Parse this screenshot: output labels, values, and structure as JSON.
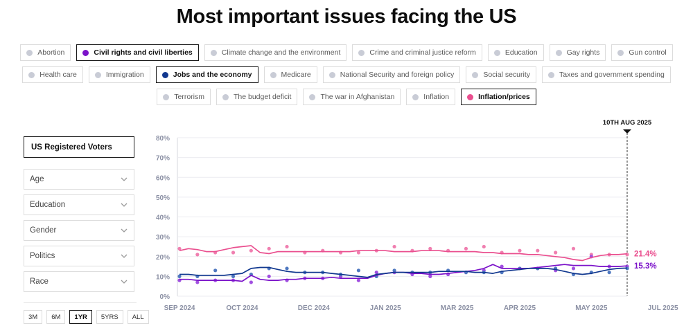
{
  "title": "Most important issues facing the US",
  "issue_rows": [
    [
      {
        "label": "Abortion",
        "active": false,
        "color": ""
      },
      {
        "label": "Civil rights and civil liberties",
        "active": true,
        "color": "#7b12c9"
      },
      {
        "label": "Climate change and the environment",
        "active": false,
        "color": ""
      },
      {
        "label": "Crime and criminal justice reform",
        "active": false,
        "color": ""
      },
      {
        "label": "Education",
        "active": false,
        "color": ""
      },
      {
        "label": "Gay rights",
        "active": false,
        "color": ""
      },
      {
        "label": "Gun control",
        "active": false,
        "color": ""
      }
    ],
    [
      {
        "label": "Health care",
        "active": false,
        "color": ""
      },
      {
        "label": "Immigration",
        "active": false,
        "color": ""
      },
      {
        "label": "Jobs and the economy",
        "active": true,
        "color": "#11388f"
      },
      {
        "label": "Medicare",
        "active": false,
        "color": ""
      },
      {
        "label": "National Security and foreign policy",
        "active": false,
        "color": ""
      },
      {
        "label": "Social security",
        "active": false,
        "color": ""
      },
      {
        "label": "Taxes and government spending",
        "active": false,
        "color": ""
      }
    ],
    [
      {
        "label": "Terrorism",
        "active": false,
        "color": ""
      },
      {
        "label": "The budget deficit",
        "active": false,
        "color": ""
      },
      {
        "label": "The war in Afghanistan",
        "active": false,
        "color": ""
      },
      {
        "label": "Inflation",
        "active": false,
        "color": ""
      },
      {
        "label": "Inflation/prices",
        "active": true,
        "color": "#ea4f8f"
      }
    ]
  ],
  "sidebar": {
    "population": "US Registered Voters",
    "filters": [
      "Age",
      "Education",
      "Gender",
      "Politics",
      "Race"
    ]
  },
  "time_ranges": [
    {
      "label": "3M",
      "active": false
    },
    {
      "label": "6M",
      "active": false
    },
    {
      "label": "1YR",
      "active": true
    },
    {
      "label": "5YRS",
      "active": false
    },
    {
      "label": "ALL",
      "active": false
    }
  ],
  "colors": {
    "inflation": "#ea4f8f",
    "inflation_dots": "#f07fb0",
    "civil": "#7b12c9",
    "civil_dots": "#a14fe0",
    "jobs": "#11388f",
    "jobs_dots": "#4f78c0",
    "grid": "#ebebf0",
    "marker": "#111111"
  },
  "chart_data": {
    "type": "line",
    "title": "Most important issues facing the US",
    "ylim": [
      0,
      80
    ],
    "yticks": [
      0,
      10,
      20,
      30,
      40,
      50,
      60,
      70,
      80
    ],
    "ytick_labels": [
      "0%",
      "10%",
      "20%",
      "30%",
      "40%",
      "50%",
      "60%",
      "70%",
      "80%"
    ],
    "x_range": [
      0,
      50
    ],
    "xtick_positions": [
      0,
      7,
      15,
      23,
      31,
      38,
      46,
      54
    ],
    "xtick_labels": [
      "SEP 2024",
      "OCT 2024",
      "DEC 2024",
      "JAN 2025",
      "MAR 2025",
      "APR 2025",
      "MAY 2025",
      "JUL 2025"
    ],
    "current_marker": {
      "label": "10TH AUG 2025",
      "x": 50
    },
    "series": [
      {
        "name": "Inflation/prices",
        "color_key": "inflation",
        "end_label": "21.4%",
        "line": [
          23.0,
          24.0,
          23.5,
          22.5,
          22.5,
          23.5,
          24.5,
          25.0,
          25.5,
          22.0,
          21.5,
          22.5,
          22.5,
          22.5,
          22.5,
          22.5,
          22.5,
          22.5,
          22.5,
          22.5,
          23.0,
          23.0,
          23.0,
          23.0,
          22.5,
          22.5,
          22.5,
          23.0,
          23.0,
          23.0,
          22.5,
          22.5,
          22.5,
          22.5,
          22.0,
          22.0,
          21.5,
          21.5,
          21.5,
          21.0,
          21.0,
          20.5,
          20.0,
          19.5,
          18.5,
          18.0,
          19.5,
          20.5,
          21.0,
          21.0,
          21.4
        ],
        "points": [
          [
            0,
            24
          ],
          [
            2,
            21
          ],
          [
            4,
            22
          ],
          [
            6,
            22
          ],
          [
            8,
            23
          ],
          [
            10,
            24
          ],
          [
            12,
            25
          ],
          [
            14,
            22
          ],
          [
            16,
            23
          ],
          [
            18,
            22
          ],
          [
            20,
            22
          ],
          [
            22,
            23
          ],
          [
            24,
            25
          ],
          [
            26,
            23
          ],
          [
            28,
            24
          ],
          [
            30,
            23
          ],
          [
            32,
            24
          ],
          [
            34,
            25
          ],
          [
            36,
            22
          ],
          [
            38,
            23
          ],
          [
            40,
            23
          ],
          [
            42,
            22
          ],
          [
            44,
            24
          ],
          [
            46,
            21
          ],
          [
            48,
            21
          ],
          [
            50,
            21
          ]
        ]
      },
      {
        "name": "Civil rights and civil liberties",
        "color_key": "civil",
        "end_label": "15.3%",
        "line": [
          8.5,
          8.5,
          8.0,
          8.0,
          8.0,
          8.0,
          8.0,
          7.5,
          10.5,
          8.5,
          8.0,
          8.0,
          8.5,
          8.5,
          9.0,
          9.0,
          9.0,
          9.5,
          9.0,
          9.0,
          9.0,
          9.0,
          10.5,
          11.5,
          12.0,
          12.0,
          11.5,
          11.5,
          11.0,
          11.0,
          11.5,
          12.0,
          12.5,
          13.0,
          14.0,
          16.0,
          14.0,
          14.0,
          14.0,
          14.0,
          14.5,
          15.0,
          15.5,
          16.0,
          15.5,
          15.5,
          15.5,
          15.0,
          15.0,
          15.0,
          15.3
        ],
        "points": [
          [
            0,
            8
          ],
          [
            2,
            7
          ],
          [
            4,
            8
          ],
          [
            6,
            8
          ],
          [
            8,
            7
          ],
          [
            10,
            10
          ],
          [
            12,
            8
          ],
          [
            14,
            9
          ],
          [
            16,
            9
          ],
          [
            18,
            10
          ],
          [
            20,
            8
          ],
          [
            22,
            12
          ],
          [
            24,
            12
          ],
          [
            26,
            11
          ],
          [
            28,
            10
          ],
          [
            30,
            11
          ],
          [
            32,
            12
          ],
          [
            34,
            13
          ],
          [
            36,
            15
          ],
          [
            38,
            14
          ],
          [
            40,
            14
          ],
          [
            42,
            13
          ],
          [
            44,
            14
          ],
          [
            46,
            20
          ],
          [
            48,
            15
          ],
          [
            50,
            15
          ]
        ]
      },
      {
        "name": "Jobs and the economy",
        "color_key": "jobs",
        "end_label": "",
        "line": [
          11.0,
          11.0,
          10.5,
          10.5,
          10.5,
          10.5,
          11.0,
          11.5,
          14.0,
          14.5,
          14.5,
          13.5,
          12.5,
          12.0,
          12.0,
          12.0,
          12.0,
          11.5,
          11.0,
          10.5,
          10.0,
          9.5,
          11.0,
          11.5,
          12.0,
          12.0,
          12.0,
          12.0,
          12.0,
          12.5,
          12.5,
          12.5,
          12.5,
          12.0,
          12.0,
          11.5,
          12.5,
          13.0,
          13.5,
          14.0,
          14.0,
          14.0,
          13.5,
          12.5,
          11.5,
          11.0,
          11.5,
          12.5,
          13.5,
          14.0,
          14.2
        ],
        "points": [
          [
            0,
            10
          ],
          [
            2,
            10
          ],
          [
            4,
            13
          ],
          [
            6,
            10
          ],
          [
            8,
            11
          ],
          [
            10,
            14
          ],
          [
            12,
            14
          ],
          [
            14,
            12
          ],
          [
            16,
            12
          ],
          [
            18,
            11
          ],
          [
            20,
            13
          ],
          [
            22,
            10
          ],
          [
            24,
            13
          ],
          [
            26,
            12
          ],
          [
            28,
            12
          ],
          [
            30,
            13
          ],
          [
            32,
            12
          ],
          [
            34,
            12
          ],
          [
            36,
            12
          ],
          [
            38,
            14
          ],
          [
            40,
            14
          ],
          [
            42,
            14
          ],
          [
            44,
            11
          ],
          [
            46,
            12
          ],
          [
            48,
            12
          ],
          [
            50,
            14
          ]
        ]
      }
    ]
  }
}
